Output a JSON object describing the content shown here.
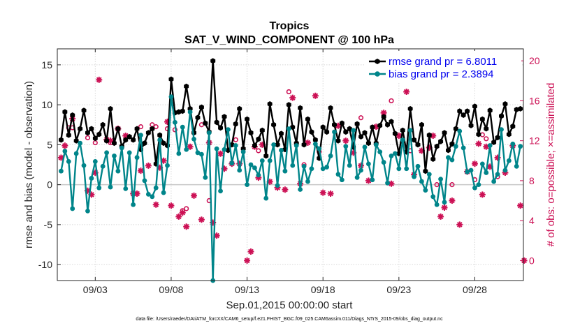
{
  "chart_data": {
    "type": "line",
    "title": "Tropics",
    "subtitle": "SAT_V_WIND_COMPONENT @ 100 hPa",
    "xlabel": "Sep.01,2015 00:00:00 start",
    "ylabel": "rmse and bias (model - observation)",
    "y2label": "# of obs: o=possible; ×=assimilated",
    "footer": "data file: /Users/raeder/DAI/ATM_forcXX/CAM6_setup/f.e21.FHIST_BGC.f09_025.CAM6assim.011/Diags_NTrS_2015-09/obs_diag_output.nc",
    "xlim": [
      0.5,
      31.2
    ],
    "ylim": [
      -12,
      17
    ],
    "y2lim": [
      -2,
      21.2
    ],
    "x_ticks": [
      3,
      8,
      13,
      18,
      23,
      28
    ],
    "x_tick_labels": [
      "09/03",
      "09/08",
      "09/13",
      "09/18",
      "09/23",
      "09/28"
    ],
    "y_ticks": [
      -10,
      -5,
      0,
      5,
      10,
      15
    ],
    "y_tick_labels": [
      "-10",
      "-5",
      "0",
      "5",
      "10",
      "15"
    ],
    "y2_ticks": [
      0,
      4,
      8,
      12,
      16,
      20
    ],
    "y2_tick_labels": [
      "0",
      "4",
      "8",
      "12",
      "16",
      "20"
    ],
    "grid": true,
    "legend_position": "top-right",
    "series": [
      {
        "name": "rmse grand pr = 6.8011",
        "color": "#000000",
        "marker": "hexagon",
        "x": [
          0.75,
          1.0,
          1.25,
          1.5,
          1.75,
          2.0,
          2.25,
          2.5,
          2.75,
          3.0,
          3.25,
          3.5,
          3.75,
          4.0,
          4.25,
          4.5,
          4.75,
          5.0,
          5.25,
          5.5,
          5.75,
          6.0,
          6.25,
          6.5,
          6.75,
          7.0,
          7.25,
          7.5,
          7.75,
          8.0,
          8.25,
          8.5,
          8.75,
          9.0,
          9.25,
          9.5,
          9.75,
          10.0,
          10.25,
          10.5,
          10.75,
          11.0,
          11.25,
          11.5,
          11.75,
          12.0,
          12.25,
          12.5,
          12.75,
          13.0,
          13.25,
          13.5,
          13.75,
          14.0,
          14.25,
          14.5,
          14.75,
          15.0,
          15.25,
          15.5,
          15.75,
          16.0,
          16.25,
          16.5,
          16.75,
          17.0,
          17.25,
          17.5,
          17.75,
          18.0,
          18.25,
          18.5,
          18.75,
          19.0,
          19.25,
          19.5,
          19.75,
          20.0,
          20.25,
          20.5,
          20.75,
          21.0,
          21.25,
          21.5,
          21.75,
          22.0,
          22.25,
          22.5,
          22.75,
          23.0,
          23.25,
          23.5,
          23.75,
          24.0,
          24.25,
          24.5,
          24.75,
          25.0,
          25.25,
          25.5,
          25.75,
          26.0,
          26.25,
          26.5,
          26.75,
          27.0,
          27.25,
          27.5,
          27.75,
          28.0,
          28.25,
          28.5,
          28.75,
          29.0,
          29.25,
          29.5,
          29.75,
          30.0,
          30.25,
          30.5,
          30.75,
          31.0
        ],
        "values": [
          5.6,
          9.1,
          6.2,
          8.7,
          5.5,
          7.0,
          9.3,
          6.5,
          7.0,
          5.8,
          6.3,
          7.5,
          5.5,
          9.5,
          5.2,
          7.0,
          4.8,
          5.6,
          6.0,
          5.6,
          7.0,
          4.4,
          5.2,
          6.5,
          7.0,
          2.6,
          6.2,
          5.2,
          4.9,
          13.2,
          9.0,
          9.1,
          9.2,
          12.3,
          9.5,
          6.5,
          8.4,
          9.7,
          7.7,
          6.6,
          15.5,
          7.8,
          7.1,
          8.5,
          4.3,
          5.0,
          7.6,
          9.5,
          4.5,
          8.2,
          6.5,
          4.9,
          5.7,
          6.8,
          3.6,
          10.1,
          7.5,
          5.0,
          6.4,
          4.4,
          10.0,
          7.2,
          5.2,
          9.6,
          5.0,
          8.2,
          6.6,
          5.6,
          3.3,
          7.2,
          6.6,
          9.6,
          7.5,
          5.5,
          7.7,
          6.6,
          7.0,
          4.7,
          7.6,
          6.0,
          6.5,
          5.2,
          7.2,
          5.2,
          7.4,
          8.5,
          7.5,
          7.9,
          6.4,
          3.9,
          6.8,
          4.1,
          9.5,
          5.6,
          5.0,
          7.5,
          1.7,
          6.2,
          3.2,
          4.8,
          5.4,
          6.5,
          4.3,
          5.1,
          7.0,
          9.2,
          8.7,
          9.2,
          7.4,
          9.8,
          6.3,
          8.2,
          7.0,
          9.3,
          5.3,
          5.9,
          8.6,
          10.1,
          6.3,
          7.3,
          9.4,
          9.5
        ]
      },
      {
        "name": "bias grand pr = 2.3894",
        "color": "#00858a",
        "marker": "circle",
        "x": [
          0.75,
          1.0,
          1.25,
          1.5,
          1.75,
          2.0,
          2.25,
          2.5,
          2.75,
          3.0,
          3.25,
          3.5,
          3.75,
          4.0,
          4.25,
          4.5,
          4.75,
          5.0,
          5.25,
          5.5,
          5.75,
          6.0,
          6.25,
          6.5,
          6.75,
          7.0,
          7.25,
          7.5,
          7.75,
          8.0,
          8.25,
          8.5,
          8.75,
          9.0,
          9.25,
          9.5,
          9.75,
          10.0,
          10.25,
          10.5,
          10.75,
          11.0,
          11.25,
          11.5,
          11.75,
          12.0,
          12.25,
          12.5,
          12.75,
          13.0,
          13.25,
          13.5,
          13.75,
          14.0,
          14.25,
          14.5,
          14.75,
          15.0,
          15.25,
          15.5,
          15.75,
          16.0,
          16.25,
          16.5,
          16.75,
          17.0,
          17.25,
          17.5,
          17.75,
          18.0,
          18.25,
          18.5,
          18.75,
          19.0,
          19.25,
          19.5,
          19.75,
          20.0,
          20.25,
          20.5,
          20.75,
          21.0,
          21.25,
          21.5,
          21.75,
          22.0,
          22.25,
          22.5,
          22.75,
          23.0,
          23.25,
          23.5,
          23.75,
          24.0,
          24.25,
          24.5,
          24.75,
          25.0,
          25.25,
          25.5,
          25.75,
          26.0,
          26.25,
          26.5,
          26.75,
          27.0,
          27.25,
          27.5,
          27.75,
          28.0,
          28.25,
          28.5,
          28.75,
          29.0,
          29.25,
          29.5,
          29.75,
          30.0,
          30.25,
          30.5,
          30.75,
          31.0
        ],
        "values": [
          1.7,
          4.2,
          2.9,
          -3.0,
          3.9,
          5.2,
          2.4,
          -3.3,
          0.8,
          2.9,
          -0.4,
          2.3,
          4.0,
          -0.3,
          3.6,
          1.7,
          4.6,
          -0.5,
          4.0,
          -2.5,
          3.4,
          6.2,
          0.5,
          -1.2,
          -1.5,
          -0.4,
          5.6,
          -1.0,
          2.4,
          11.0,
          7.8,
          3.9,
          7.2,
          4.4,
          9.1,
          5.7,
          4.0,
          3.8,
          0.9,
          6.5,
          -12.0,
          4.5,
          -0.8,
          4.4,
          6.9,
          2.7,
          4.9,
          1.8,
          4.1,
          0.0,
          2.5,
          2.1,
          1.2,
          3.0,
          -1.7,
          3.0,
          5.0,
          -0.1,
          4.3,
          1.7,
          7.0,
          2.4,
          4.9,
          -0.6,
          2.3,
          0.4,
          2.0,
          5.1,
          4.5,
          2.0,
          2.2,
          3.6,
          6.6,
          1.3,
          0.6,
          4.8,
          2.4,
          6.8,
          0.9,
          1.8,
          4.7,
          2.6,
          0.6,
          5.0,
          4.1,
          2.8,
          0.2,
          3.6,
          3.9,
          2.0,
          5.6,
          2.0,
          6.8,
          1.0,
          2.3,
          0.4,
          -0.7,
          1.3,
          -1.5,
          -2.5,
          0.7,
          -2.2,
          3.4,
          3.1,
          4.8,
          6.7,
          4.6,
          1.6,
          1.8,
          -0.4,
          0.0,
          2.6,
          1.5,
          4.9,
          0.4,
          1.3,
          6.9,
          1.8,
          3.0,
          5.1,
          2.3,
          4.8
        ]
      },
      {
        "name": "# of obs possible",
        "axis": "right",
        "color": "#cc1155",
        "marker": "circle-open",
        "x": [
          1.25,
          1.5,
          2.5,
          3.0,
          4.0,
          6.0,
          6.75,
          7.0,
          7.75,
          8.25,
          8.75,
          9.0,
          10.0,
          10.5,
          12.25,
          13.75,
          15.75,
          16.75,
          17.75,
          20.5,
          22.5,
          23.75,
          25.5,
          26.5,
          28.0,
          28.5,
          28.75,
          29.5
        ],
        "values": [
          13.3,
          13.3,
          12.3,
          11.8,
          11.8,
          13.4,
          13.6,
          13.4,
          13.2,
          13.1,
          5.0,
          5.2,
          13.6,
          6.0,
          12.1,
          11.0,
          16.9,
          9.6,
          10.9,
          14.3,
          16.0,
          11.0,
          7.6,
          7.6,
          8.1,
          12.6,
          12.2,
          8.4
        ]
      },
      {
        "name": "# of obs assimilated",
        "axis": "right",
        "color": "#cc1155",
        "marker": "asterisk",
        "x": [
          0.75,
          1.0,
          1.5,
          2.5,
          2.75,
          3.0,
          3.25,
          3.75,
          4.0,
          4.5,
          5.0,
          5.5,
          5.75,
          6.0,
          6.5,
          7.0,
          7.25,
          7.5,
          7.75,
          8.0,
          8.5,
          8.75,
          9.0,
          9.25,
          9.5,
          10.0,
          10.5,
          10.75,
          11.0,
          11.25,
          11.5,
          12.0,
          12.5,
          13.0,
          13.25,
          13.5,
          13.75,
          14.0,
          14.5,
          15.0,
          15.5,
          16.0,
          16.5,
          17.0,
          17.5,
          18.0,
          18.5,
          19.0,
          19.5,
          20.0,
          20.5,
          21.0,
          21.5,
          22.0,
          22.5,
          23.0,
          23.5,
          24.0,
          24.5,
          25.0,
          25.25,
          25.75,
          26.0,
          26.5,
          27.0,
          27.5,
          28.0,
          28.25,
          28.5,
          28.75,
          29.0,
          29.5,
          30.0,
          30.5,
          31.0,
          31.25
        ],
        "values": [
          10.3,
          11.5,
          14.2,
          7.0,
          6.6,
          8.8,
          18.1,
          12.1,
          12.0,
          13.2,
          12.5,
          6.7,
          6.7,
          9.0,
          9.5,
          5.6,
          9.3,
          10.0,
          13.9,
          5.5,
          4.4,
          4.8,
          3.4,
          11.4,
          6.5,
          4.1,
          11.8,
          3.8,
          2.5,
          10.7,
          9.2,
          9.7,
          9.7,
          0.0,
          0.9,
          11.4,
          8.3,
          11.6,
          7.9,
          7.3,
          7.1,
          16.3,
          7.7,
          11.8,
          16.5,
          6.8,
          6.7,
          13.5,
          12.0,
          10.8,
          9.5,
          8.0,
          13.4,
          14.8,
          7.7,
          12.5,
          16.9,
          8.6,
          11.0,
          11.3,
          12.5,
          4.4,
          5.3,
          6.0,
          3.6,
          8.9,
          9.7,
          11.7,
          6.6,
          11.4,
          9.4,
          10.3,
          8.8,
          11.5,
          5.5,
          0.0
        ]
      }
    ]
  }
}
